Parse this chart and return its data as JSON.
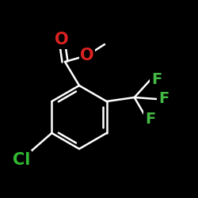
{
  "background_color": "#000000",
  "bond_color": "#ffffff",
  "atom_colors": {
    "O": "#dd2222",
    "F": "#44bb44",
    "Cl": "#33bb33",
    "C": "#ffffff"
  },
  "bond_width": 1.8,
  "font_size_atoms": 14,
  "figsize": [
    2.5,
    2.5
  ],
  "dpi": 100
}
